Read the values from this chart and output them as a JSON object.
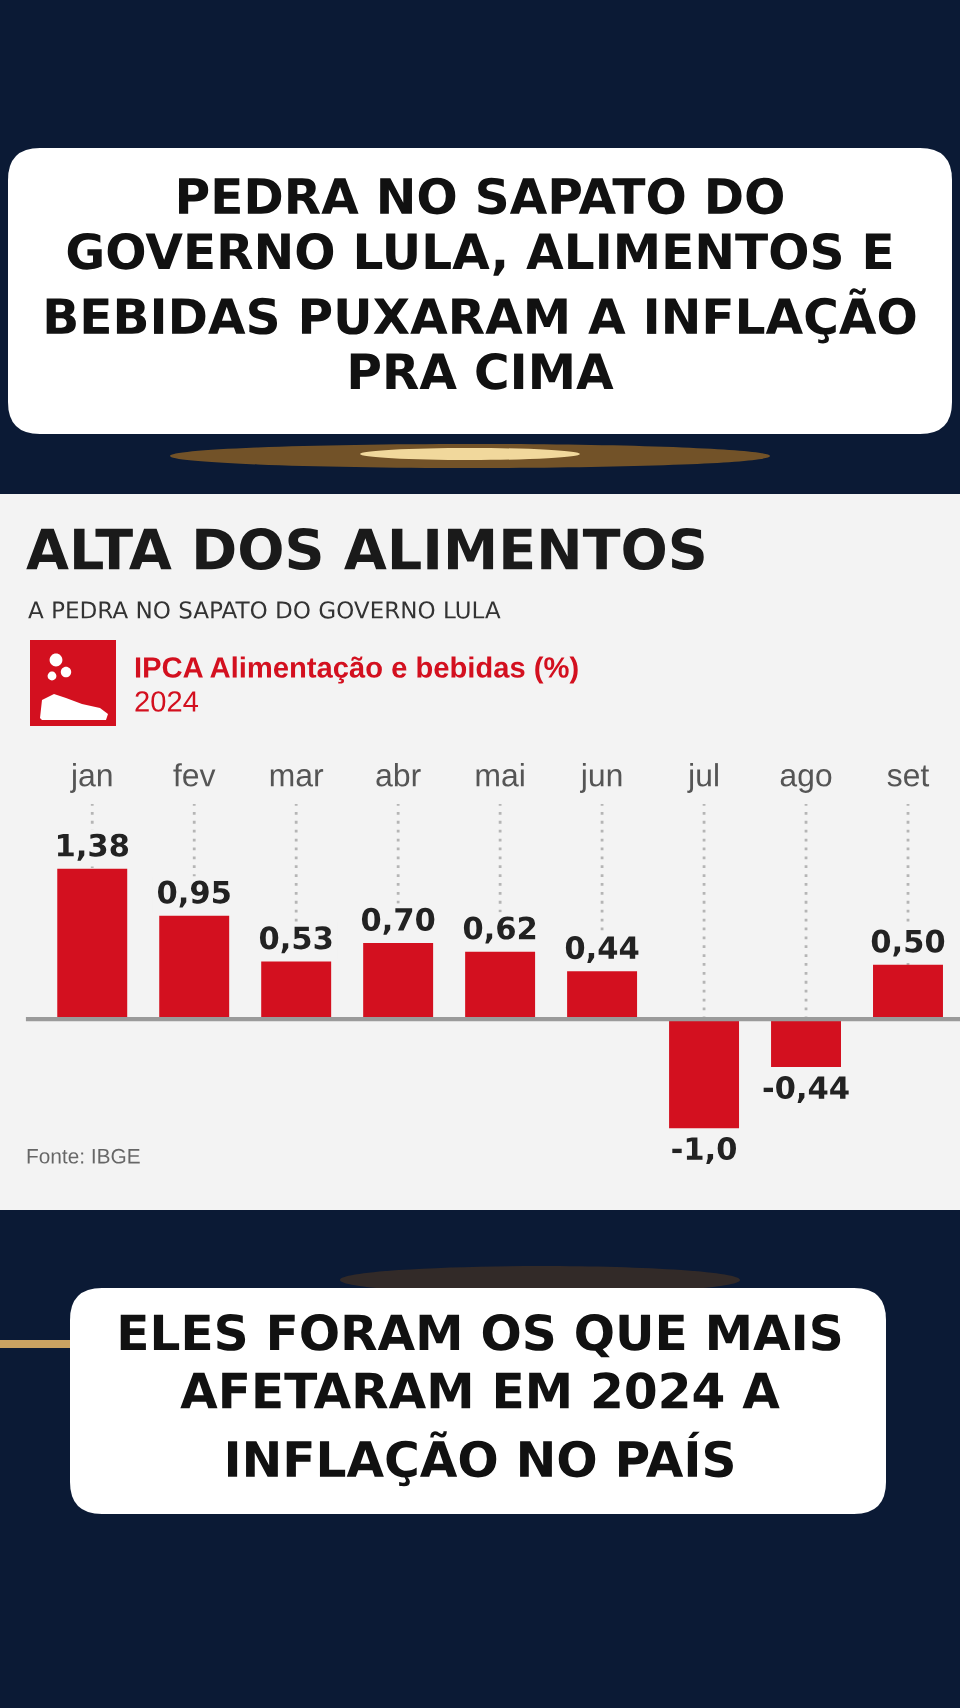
{
  "chart_data": {
    "type": "bar",
    "title": "ALTA DOS ALIMENTOS",
    "subtitle": "A PEDRA NO SAPATO DO GOVERNO LULA",
    "categories": [
      "jan",
      "fev",
      "mar",
      "abr",
      "mai",
      "jun",
      "jul",
      "ago",
      "set"
    ],
    "series": [
      {
        "name": "IPCA Alimentação e bebidas (%)",
        "color": "#d3101f",
        "values": [
          1.38,
          0.95,
          0.53,
          0.7,
          0.62,
          0.44,
          -1.0,
          -0.44,
          0.5
        ],
        "value_labels": [
          "1,38",
          "0,95",
          "0,53",
          "0,70",
          "0,62",
          "0,44",
          "-1,0",
          "-0,44",
          "0,50"
        ]
      }
    ],
    "legend": "top left",
    "grid": "x",
    "tick_labels": "x",
    "annotations": [
      "PEDRA NO SAPATO DO\nGOVERNO LULA, ALIMENTOS E\nBEBIDAS PUXARAM A INFLAÇÃO\nPRA CIMA",
      "2024",
      "Fonte: IBGE",
      "ELES FORAM OS QUE MAIS\nAFETARAM EM 2024 A\nINFLAÇÃO NO PAÍS"
    ]
  }
}
